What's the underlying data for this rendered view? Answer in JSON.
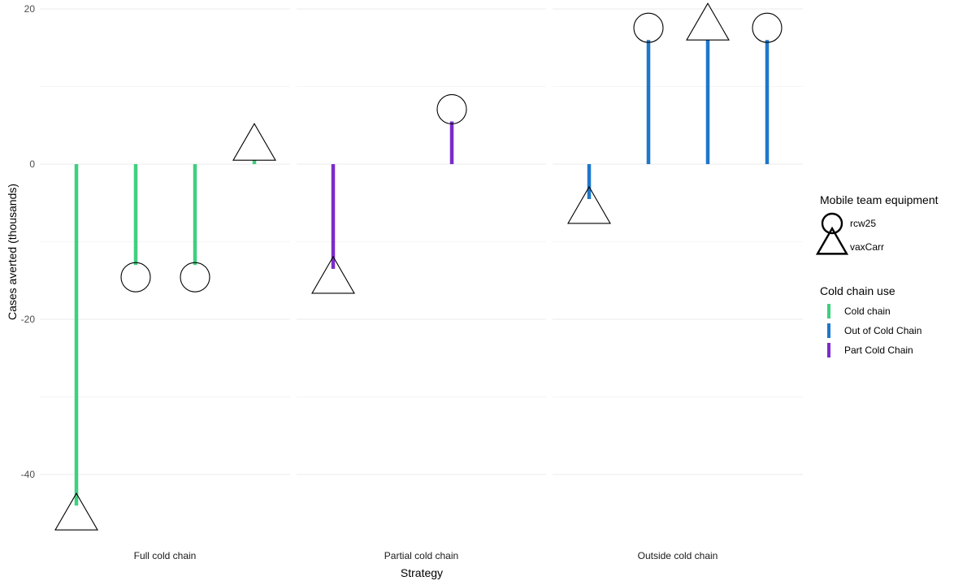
{
  "chart_data": {
    "type": "lollipop",
    "xlabel": "Strategy",
    "ylabel": "Cases averted (thousands)",
    "ylim": [
      -48,
      21
    ],
    "yticks": [
      -40,
      -20,
      0,
      20
    ],
    "grid": true,
    "facets": [
      "Full cold chain",
      "Partial cold chain",
      "Outside cold chain"
    ],
    "points": [
      {
        "facet": "Full cold chain",
        "slot": 1,
        "value": -44,
        "cold_chain": "Cold chain",
        "equipment": "vaxCarr"
      },
      {
        "facet": "Full cold chain",
        "slot": 2,
        "value": -13,
        "cold_chain": "Cold chain",
        "equipment": "rcw25"
      },
      {
        "facet": "Full cold chain",
        "slot": 3,
        "value": -13,
        "cold_chain": "Cold chain",
        "equipment": "rcw25"
      },
      {
        "facet": "Full cold chain",
        "slot": 4,
        "value": 0.5,
        "cold_chain": "Cold chain",
        "equipment": "vaxCarr"
      },
      {
        "facet": "Partial cold chain",
        "slot": 1,
        "value": -13.5,
        "cold_chain": "Part Cold Chain",
        "equipment": "vaxCarr"
      },
      {
        "facet": "Partial cold chain",
        "slot": 3,
        "value": 5.5,
        "cold_chain": "Part Cold Chain",
        "equipment": "rcw25"
      },
      {
        "facet": "Outside cold chain",
        "slot": 1,
        "value": -4.5,
        "cold_chain": "Out of Cold Chain",
        "equipment": "vaxCarr"
      },
      {
        "facet": "Outside cold chain",
        "slot": 2,
        "value": 16,
        "cold_chain": "Out of Cold Chain",
        "equipment": "rcw25"
      },
      {
        "facet": "Outside cold chain",
        "slot": 3,
        "value": 16,
        "cold_chain": "Out of Cold Chain",
        "equipment": "vaxCarr"
      },
      {
        "facet": "Outside cold chain",
        "slot": 4,
        "value": 16,
        "cold_chain": "Out of Cold Chain",
        "equipment": "rcw25"
      }
    ],
    "legend": {
      "placement": "right",
      "shape": {
        "title": "Mobile team equipment",
        "items": [
          {
            "label": "rcw25",
            "shape": "circle"
          },
          {
            "label": "vaxCarr",
            "shape": "triangle"
          }
        ]
      },
      "color": {
        "title": "Cold chain use",
        "items": [
          {
            "label": "Cold chain",
            "color": "#3fcf80"
          },
          {
            "label": "Out of Cold Chain",
            "color": "#1f77c9"
          },
          {
            "label": "Part Cold Chain",
            "color": "#7b2cc9"
          }
        ]
      }
    }
  }
}
